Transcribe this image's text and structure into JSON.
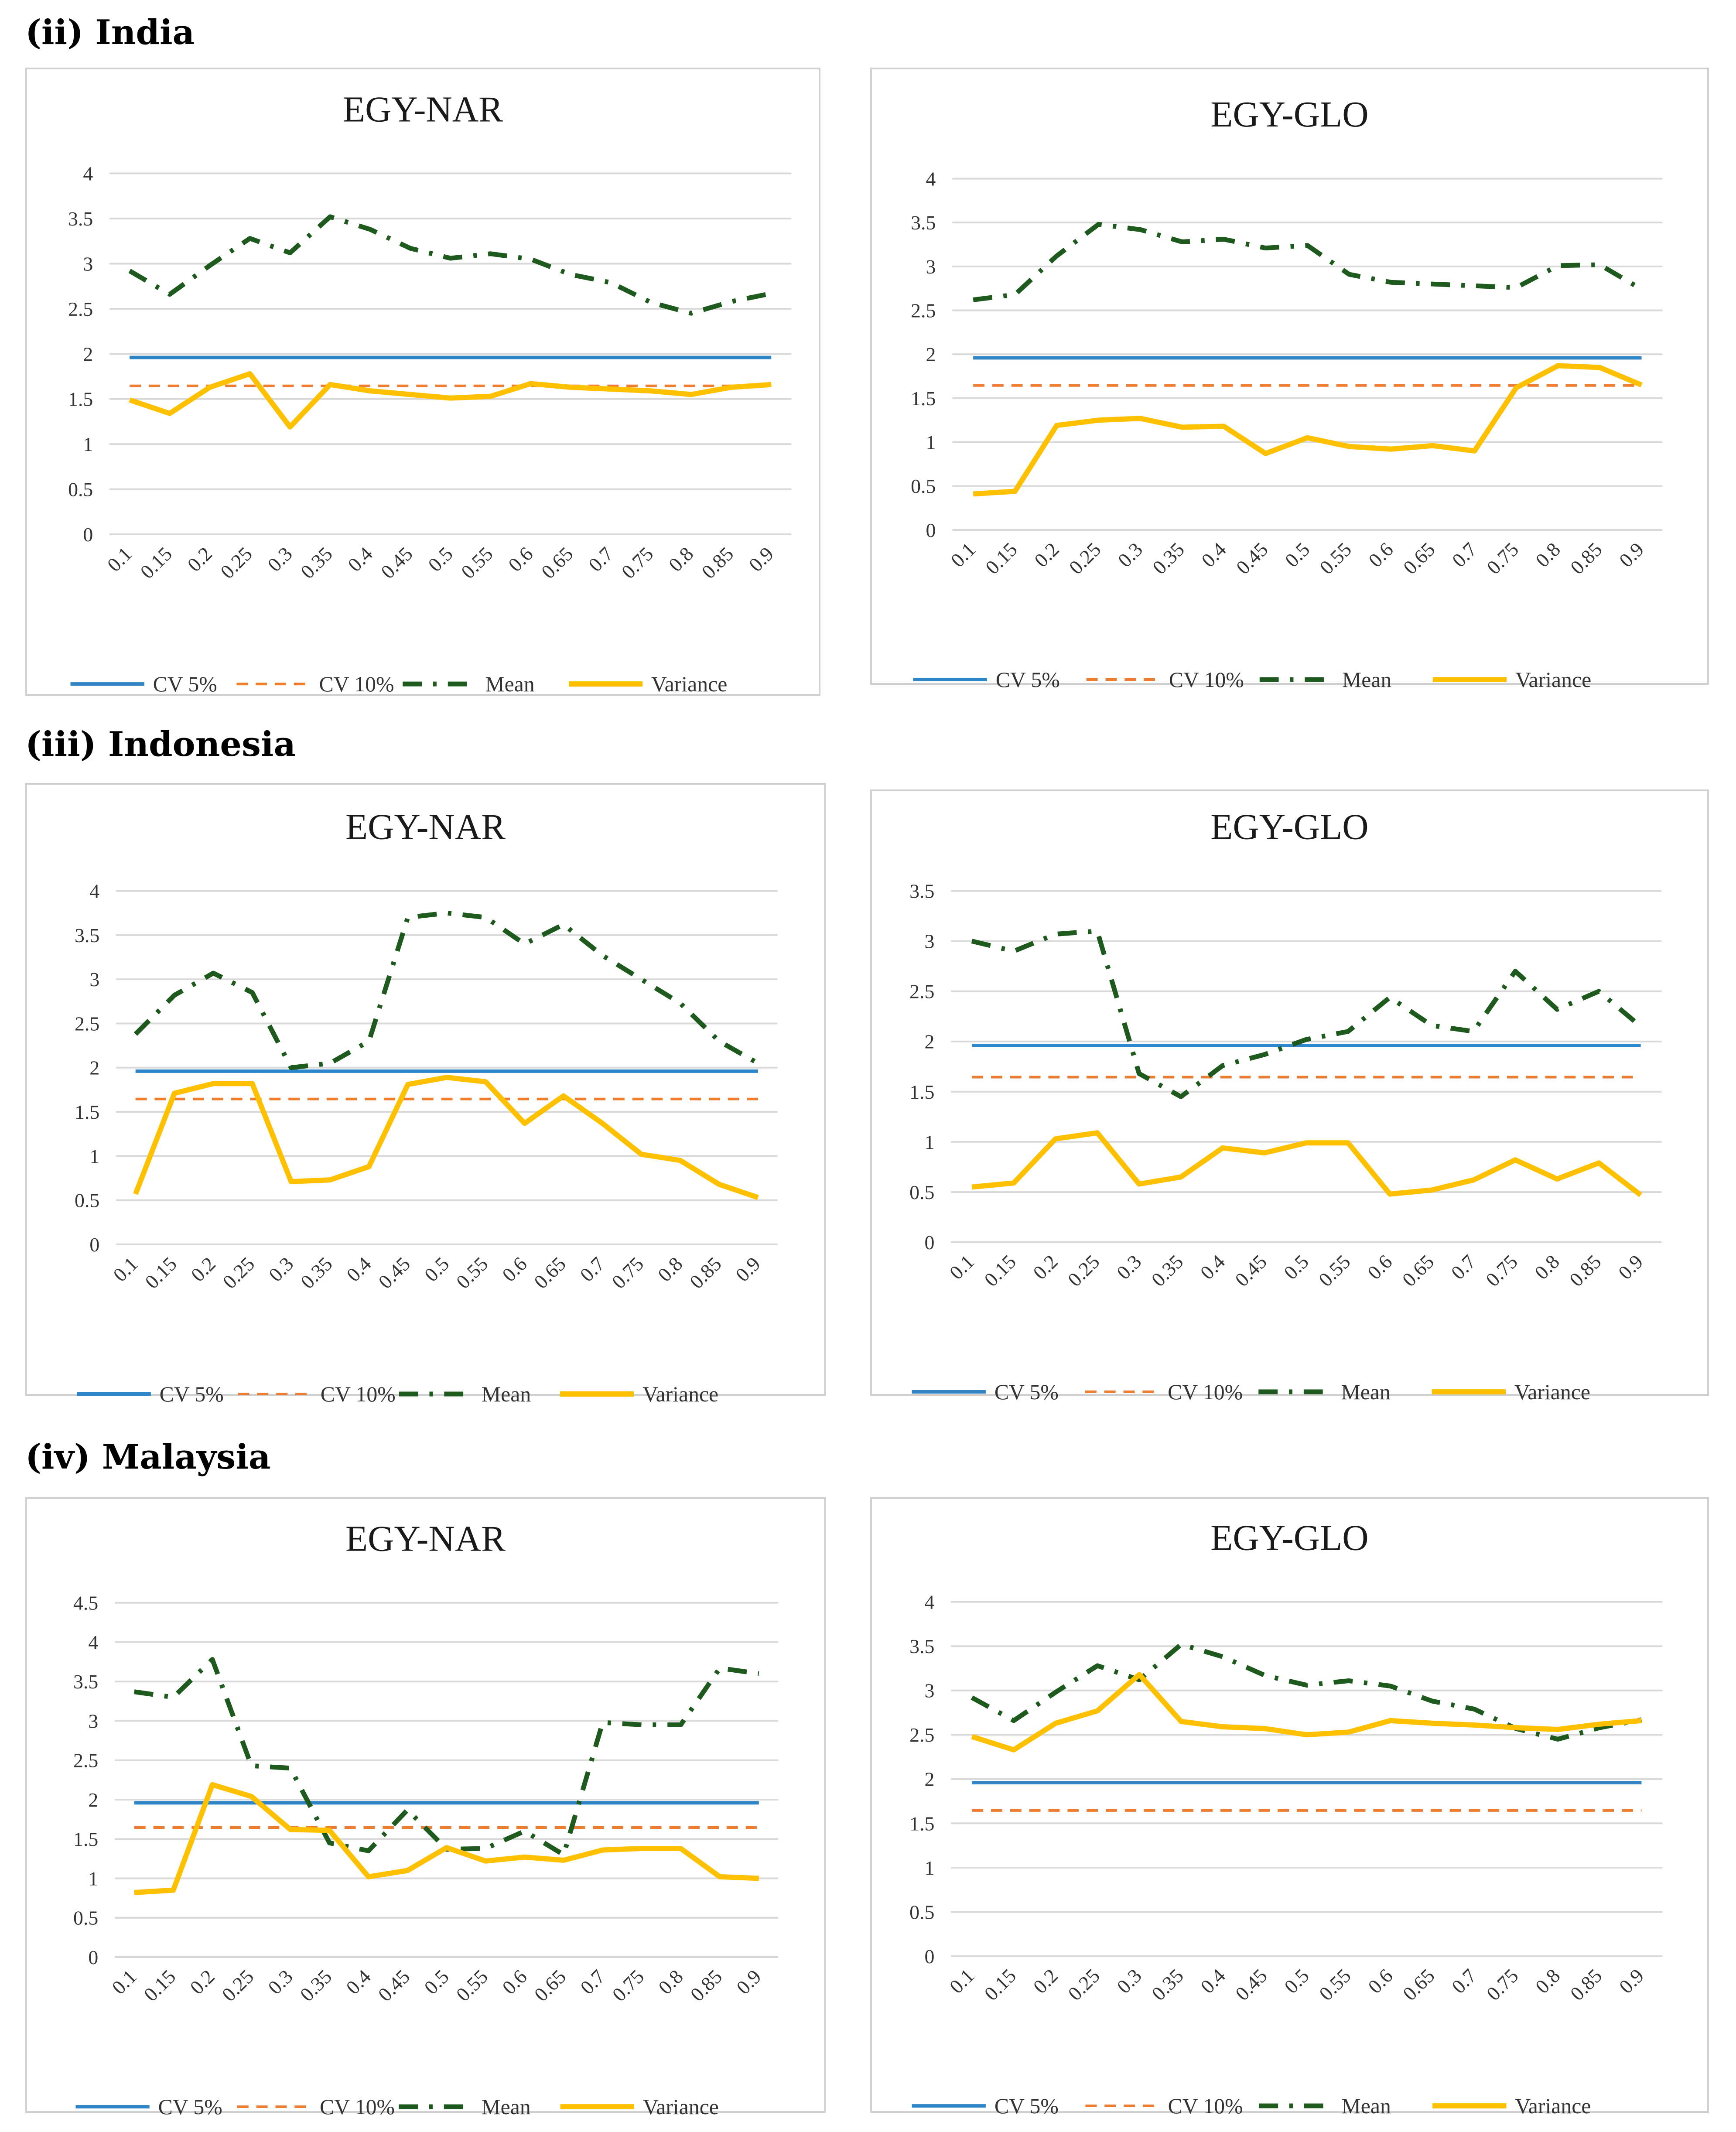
{
  "sections": [
    {
      "title": "(ii) India"
    },
    {
      "title": "(iii) Indonesia"
    },
    {
      "title": "(iv) Malaysia"
    }
  ],
  "colors": {
    "cv5": "#2E86C8",
    "cv10": "#ED7D31",
    "mean": "#1E5A1E",
    "variance": "#FFC000"
  },
  "chart_data": [
    {
      "type": "line",
      "title": "EGY-NAR",
      "ylim": [
        0,
        4
      ],
      "yticks": [
        "0",
        "0.5",
        "1",
        "1.5",
        "2",
        "2.5",
        "3",
        "3.5",
        "4"
      ],
      "categories": [
        "0.1",
        "0.15",
        "0.2",
        "0.25",
        "0.3",
        "0.35",
        "0.4",
        "0.45",
        "0.5",
        "0.55",
        "0.6",
        "0.65",
        "0.7",
        "0.75",
        "0.8",
        "0.85",
        "0.9"
      ],
      "legend": [
        "CV 5%",
        "CV 10%",
        "Mean",
        "Variance"
      ],
      "series": [
        {
          "name": "CV 5%",
          "values": [
            1.96,
            1.96,
            1.96,
            1.96,
            1.96,
            1.96,
            1.96,
            1.96,
            1.96,
            1.96,
            1.96,
            1.96,
            1.96,
            1.96,
            1.96,
            1.96,
            1.96
          ]
        },
        {
          "name": "CV 10%",
          "values": [
            1.645,
            1.645,
            1.645,
            1.645,
            1.645,
            1.645,
            1.645,
            1.645,
            1.645,
            1.645,
            1.645,
            1.645,
            1.645,
            1.645,
            1.645,
            1.645,
            1.645
          ]
        },
        {
          "name": "Mean",
          "values": [
            2.92,
            2.66,
            2.98,
            3.28,
            3.12,
            3.52,
            3.38,
            3.17,
            3.06,
            3.11,
            3.05,
            2.88,
            2.79,
            2.57,
            2.45,
            2.58,
            2.67
          ]
        },
        {
          "name": "Variance",
          "values": [
            1.49,
            1.34,
            1.63,
            1.78,
            1.19,
            1.66,
            1.59,
            1.55,
            1.51,
            1.53,
            1.67,
            1.63,
            1.61,
            1.59,
            1.55,
            1.63,
            1.66
          ]
        }
      ]
    },
    {
      "type": "line",
      "title": "EGY-GLO",
      "ylim": [
        0,
        4
      ],
      "yticks": [
        "0",
        "0.5",
        "1",
        "1.5",
        "2",
        "2.5",
        "3",
        "3.5",
        "4"
      ],
      "categories": [
        "0.1",
        "0.15",
        "0.2",
        "0.25",
        "0.3",
        "0.35",
        "0.4",
        "0.45",
        "0.5",
        "0.55",
        "0.6",
        "0.65",
        "0.7",
        "0.75",
        "0.8",
        "0.85",
        "0.9"
      ],
      "legend": [
        "CV 5%",
        "CV 10%",
        "Mean",
        "Variance"
      ],
      "series": [
        {
          "name": "CV 5%",
          "values": [
            1.96,
            1.96,
            1.96,
            1.96,
            1.96,
            1.96,
            1.96,
            1.96,
            1.96,
            1.96,
            1.96,
            1.96,
            1.96,
            1.96,
            1.96,
            1.96,
            1.96
          ]
        },
        {
          "name": "CV 10%",
          "values": [
            1.645,
            1.645,
            1.645,
            1.645,
            1.645,
            1.645,
            1.645,
            1.645,
            1.645,
            1.645,
            1.645,
            1.645,
            1.645,
            1.645,
            1.645,
            1.645,
            1.645
          ]
        },
        {
          "name": "Mean",
          "values": [
            2.62,
            2.68,
            3.12,
            3.48,
            3.42,
            3.28,
            3.31,
            3.21,
            3.24,
            2.91,
            2.82,
            2.8,
            2.78,
            2.76,
            3.01,
            3.02,
            2.74
          ]
        },
        {
          "name": "Variance",
          "values": [
            0.41,
            0.44,
            1.19,
            1.25,
            1.27,
            1.17,
            1.18,
            0.87,
            1.05,
            0.95,
            0.92,
            0.96,
            0.9,
            1.62,
            1.87,
            1.85,
            1.65
          ]
        }
      ]
    },
    {
      "type": "line",
      "title": "EGY-NAR",
      "ylim": [
        0,
        4
      ],
      "yticks": [
        "0",
        "0.5",
        "1",
        "1.5",
        "2",
        "2.5",
        "3",
        "3.5",
        "4"
      ],
      "categories": [
        "0.1",
        "0.15",
        "0.2",
        "0.25",
        "0.3",
        "0.35",
        "0.4",
        "0.45",
        "0.5",
        "0.55",
        "0.6",
        "0.65",
        "0.7",
        "0.75",
        "0.8",
        "0.85",
        "0.9"
      ],
      "legend": [
        "CV 5%",
        "CV 10%",
        "Mean",
        "Variance"
      ],
      "series": [
        {
          "name": "CV 5%",
          "values": [
            1.96,
            1.96,
            1.96,
            1.96,
            1.96,
            1.96,
            1.96,
            1.96,
            1.96,
            1.96,
            1.96,
            1.96,
            1.96,
            1.96,
            1.96,
            1.96,
            1.96
          ]
        },
        {
          "name": "CV 10%",
          "values": [
            1.645,
            1.645,
            1.645,
            1.645,
            1.645,
            1.645,
            1.645,
            1.645,
            1.645,
            1.645,
            1.645,
            1.645,
            1.645,
            1.645,
            1.645,
            1.645,
            1.645
          ]
        },
        {
          "name": "Mean",
          "values": [
            2.38,
            2.82,
            3.07,
            2.85,
            2.0,
            2.05,
            2.3,
            3.7,
            3.75,
            3.7,
            3.4,
            3.62,
            3.27,
            3.0,
            2.73,
            2.3,
            2.05
          ]
        },
        {
          "name": "Variance",
          "values": [
            0.57,
            1.71,
            1.82,
            1.82,
            0.71,
            0.73,
            0.88,
            1.81,
            1.89,
            1.84,
            1.37,
            1.68,
            1.37,
            1.02,
            0.95,
            0.68,
            0.53
          ]
        }
      ]
    },
    {
      "type": "line",
      "title": "EGY-GLO",
      "ylim": [
        0,
        3.5
      ],
      "yticks": [
        "0",
        "0.5",
        "1",
        "1.5",
        "2",
        "2.5",
        "3",
        "3.5"
      ],
      "categories": [
        "0.1",
        "0.15",
        "0.2",
        "0.25",
        "0.3",
        "0.35",
        "0.4",
        "0.45",
        "0.5",
        "0.55",
        "0.6",
        "0.65",
        "0.7",
        "0.75",
        "0.8",
        "0.85",
        "0.9"
      ],
      "legend": [
        "CV 5%",
        "CV 10%",
        "Mean",
        "Variance"
      ],
      "series": [
        {
          "name": "CV 5%",
          "values": [
            1.96,
            1.96,
            1.96,
            1.96,
            1.96,
            1.96,
            1.96,
            1.96,
            1.96,
            1.96,
            1.96,
            1.96,
            1.96,
            1.96,
            1.96,
            1.96,
            1.96
          ]
        },
        {
          "name": "CV 10%",
          "values": [
            1.645,
            1.645,
            1.645,
            1.645,
            1.645,
            1.645,
            1.645,
            1.645,
            1.645,
            1.645,
            1.645,
            1.645,
            1.645,
            1.645,
            1.645,
            1.645,
            1.645
          ]
        },
        {
          "name": "Mean",
          "values": [
            3.0,
            2.9,
            3.07,
            3.1,
            1.68,
            1.45,
            1.76,
            1.87,
            2.02,
            2.1,
            2.44,
            2.16,
            2.1,
            2.7,
            2.32,
            2.5,
            2.15
          ]
        },
        {
          "name": "Variance",
          "values": [
            0.55,
            0.59,
            1.03,
            1.09,
            0.58,
            0.65,
            0.94,
            0.89,
            0.99,
            0.99,
            0.48,
            0.52,
            0.62,
            0.82,
            0.63,
            0.79,
            0.47
          ]
        }
      ]
    },
    {
      "type": "line",
      "title": "EGY-NAR",
      "ylim": [
        0,
        4.5
      ],
      "yticks": [
        "0",
        "0.5",
        "1",
        "1.5",
        "2",
        "2.5",
        "3",
        "3.5",
        "4",
        "4.5"
      ],
      "categories": [
        "0.1",
        "0.15",
        "0.2",
        "0.25",
        "0.3",
        "0.35",
        "0.4",
        "0.45",
        "0.5",
        "0.55",
        "0.6",
        "0.65",
        "0.7",
        "0.75",
        "0.8",
        "0.85",
        "0.9"
      ],
      "legend": [
        "CV 5%",
        "CV 10%",
        "Mean",
        "Variance"
      ],
      "series": [
        {
          "name": "CV 5%",
          "values": [
            1.96,
            1.96,
            1.96,
            1.96,
            1.96,
            1.96,
            1.96,
            1.96,
            1.96,
            1.96,
            1.96,
            1.96,
            1.96,
            1.96,
            1.96,
            1.96,
            1.96
          ]
        },
        {
          "name": "CV 10%",
          "values": [
            1.645,
            1.645,
            1.645,
            1.645,
            1.645,
            1.645,
            1.645,
            1.645,
            1.645,
            1.645,
            1.645,
            1.645,
            1.645,
            1.645,
            1.645,
            1.645,
            1.645
          ]
        },
        {
          "name": "Mean",
          "values": [
            3.37,
            3.3,
            3.78,
            2.43,
            2.4,
            1.45,
            1.35,
            1.87,
            1.37,
            1.38,
            1.6,
            1.3,
            2.98,
            2.95,
            2.95,
            3.67,
            3.6
          ]
        },
        {
          "name": "Variance",
          "values": [
            0.82,
            0.85,
            2.19,
            2.04,
            1.62,
            1.61,
            1.02,
            1.1,
            1.39,
            1.22,
            1.27,
            1.23,
            1.36,
            1.38,
            1.38,
            1.02,
            1.0
          ]
        }
      ]
    },
    {
      "type": "line",
      "title": "EGY-GLO",
      "ylim": [
        0,
        4
      ],
      "yticks": [
        "0",
        "0.5",
        "1",
        "1.5",
        "2",
        "2.5",
        "3",
        "3.5",
        "4"
      ],
      "categories": [
        "0.1",
        "0.15",
        "0.2",
        "0.25",
        "0.3",
        "0.35",
        "0.4",
        "0.45",
        "0.5",
        "0.55",
        "0.6",
        "0.65",
        "0.7",
        "0.75",
        "0.8",
        "0.85",
        "0.9"
      ],
      "legend": [
        "CV 5%",
        "CV 10%",
        "Mean",
        "Variance"
      ],
      "series": [
        {
          "name": "CV 5%",
          "values": [
            1.96,
            1.96,
            1.96,
            1.96,
            1.96,
            1.96,
            1.96,
            1.96,
            1.96,
            1.96,
            1.96,
            1.96,
            1.96,
            1.96,
            1.96,
            1.96,
            1.96
          ]
        },
        {
          "name": "CV 10%",
          "values": [
            1.645,
            1.645,
            1.645,
            1.645,
            1.645,
            1.645,
            1.645,
            1.645,
            1.645,
            1.645,
            1.645,
            1.645,
            1.645,
            1.645,
            1.645,
            1.645,
            1.645
          ]
        },
        {
          "name": "Mean",
          "values": [
            2.92,
            2.66,
            2.98,
            3.28,
            3.12,
            3.52,
            3.38,
            3.17,
            3.06,
            3.11,
            3.05,
            2.88,
            2.79,
            2.57,
            2.45,
            2.58,
            2.67
          ]
        },
        {
          "name": "Variance",
          "values": [
            2.48,
            2.33,
            2.63,
            2.77,
            3.18,
            2.65,
            2.59,
            2.57,
            2.5,
            2.53,
            2.66,
            2.63,
            2.61,
            2.58,
            2.56,
            2.62,
            2.66
          ]
        }
      ]
    }
  ]
}
